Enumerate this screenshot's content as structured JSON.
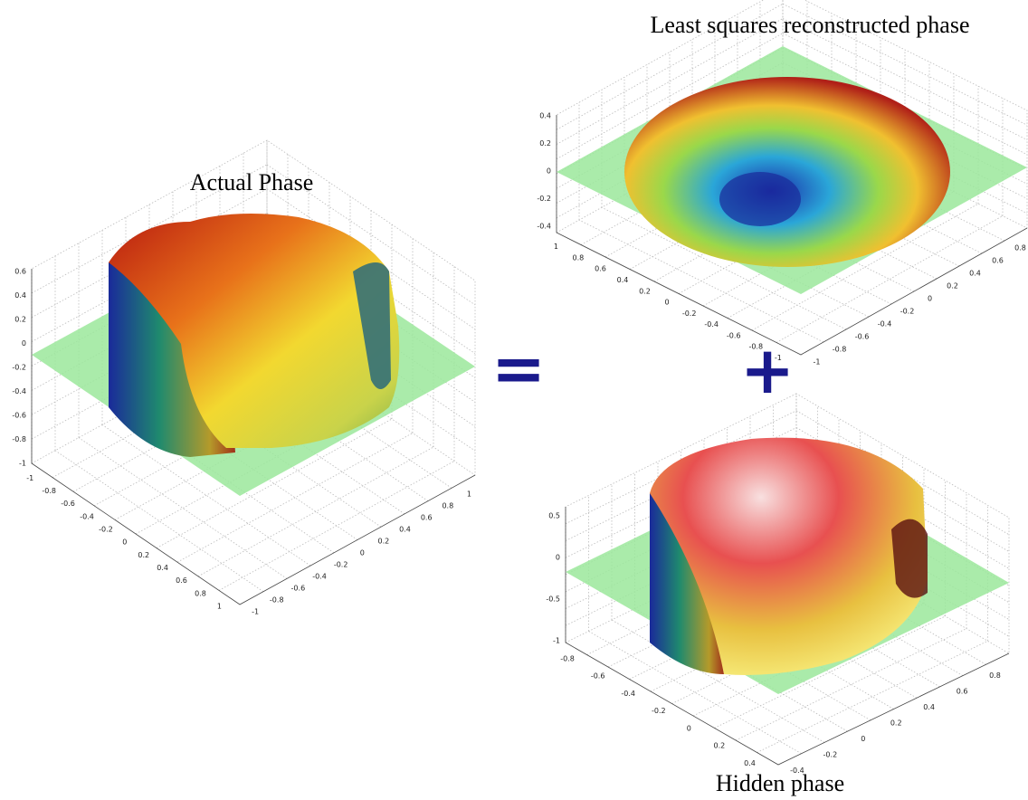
{
  "figure": {
    "equals": "=",
    "plus": "+",
    "panels": [
      {
        "title": "Actual Phase",
        "z_ticks": [
          "0.6",
          "0.4",
          "0.2",
          "0",
          "-0.2",
          "-0.4",
          "-0.6",
          "-0.8",
          "-1"
        ],
        "left_ticks": [
          "-1",
          "-0.8",
          "-0.6",
          "-0.4",
          "-0.2",
          "0",
          "0.2",
          "0.4",
          "0.6",
          "0.8",
          "1"
        ],
        "right_ticks": [
          "-1",
          "-0.8",
          "-0.6",
          "-0.4",
          "-0.2",
          "0",
          "0.2",
          "0.4",
          "0.6",
          "0.8",
          "1"
        ]
      },
      {
        "title": "Least squares reconstructed phase",
        "z_ticks": [
          "0.4",
          "0.2",
          "0",
          "-0.2",
          "-0.4"
        ],
        "left_ticks": [
          "1",
          "0.8",
          "0.6",
          "0.4",
          "0.2",
          "0",
          "-0.2",
          "-0.4",
          "-0.6",
          "-0.8",
          "-1"
        ],
        "right_ticks": [
          "-1",
          "-0.8",
          "-0.6",
          "-0.4",
          "-0.2",
          "0",
          "0.2",
          "0.4",
          "0.6",
          "0.8"
        ]
      },
      {
        "title": "Hidden phase",
        "z_ticks": [
          "0.5",
          "0",
          "-0.5",
          "-1"
        ],
        "left_ticks": [
          "-0.8",
          "-0.6",
          "-0.4",
          "-0.2",
          "0",
          "0.2",
          "0.4"
        ],
        "right_ticks": [
          "-0.4",
          "-0.2",
          "0",
          "0.2",
          "0.4",
          "0.6",
          "0.8"
        ]
      }
    ]
  }
}
